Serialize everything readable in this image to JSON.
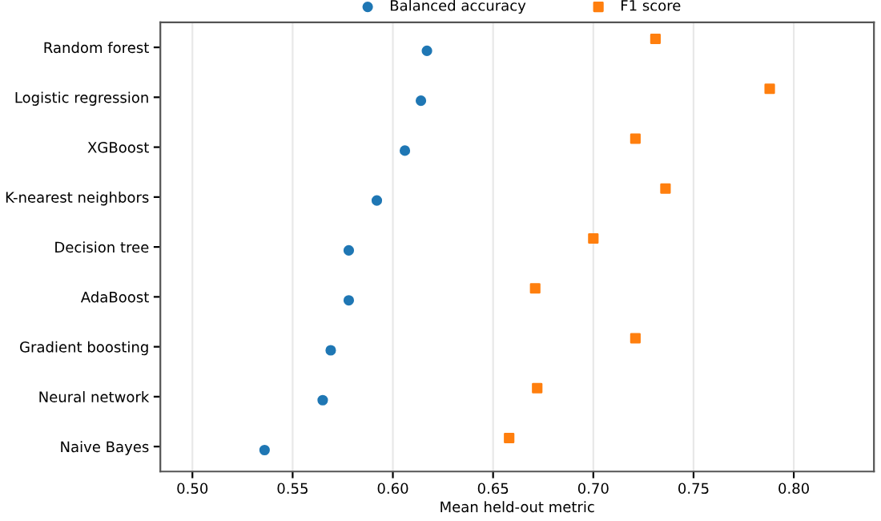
{
  "chart_data": {
    "type": "scatter",
    "orientation": "horizontal",
    "xlabel": "Mean held-out metric",
    "categories": [
      "Random forest",
      "Logistic regression",
      "XGBoost",
      "K-nearest neighbors",
      "Decision tree",
      "AdaBoost",
      "Gradient boosting",
      "Neural network",
      "Naive Bayes"
    ],
    "series": [
      {
        "name": "Balanced accuracy",
        "color": "#1f77b4",
        "marker": "circle",
        "values": [
          0.617,
          0.614,
          0.606,
          0.592,
          0.578,
          0.578,
          0.569,
          0.565,
          0.536
        ]
      },
      {
        "name": "F1 score",
        "color": "#ff7f0e",
        "marker": "square",
        "values": [
          0.731,
          0.788,
          0.721,
          0.736,
          0.7,
          0.671,
          0.721,
          0.672,
          0.658
        ]
      }
    ],
    "xlim": [
      0.484,
      0.84
    ],
    "xticks": [
      {
        "value": 0.5,
        "label": "0.50"
      },
      0.55,
      {
        "value": 0.6,
        "label": "0.60"
      },
      0.65,
      {
        "value": 0.7,
        "label": "0.70"
      },
      0.75,
      {
        "value": 0.8,
        "label": "0.80"
      }
    ],
    "grid": "x",
    "legend": "top"
  }
}
